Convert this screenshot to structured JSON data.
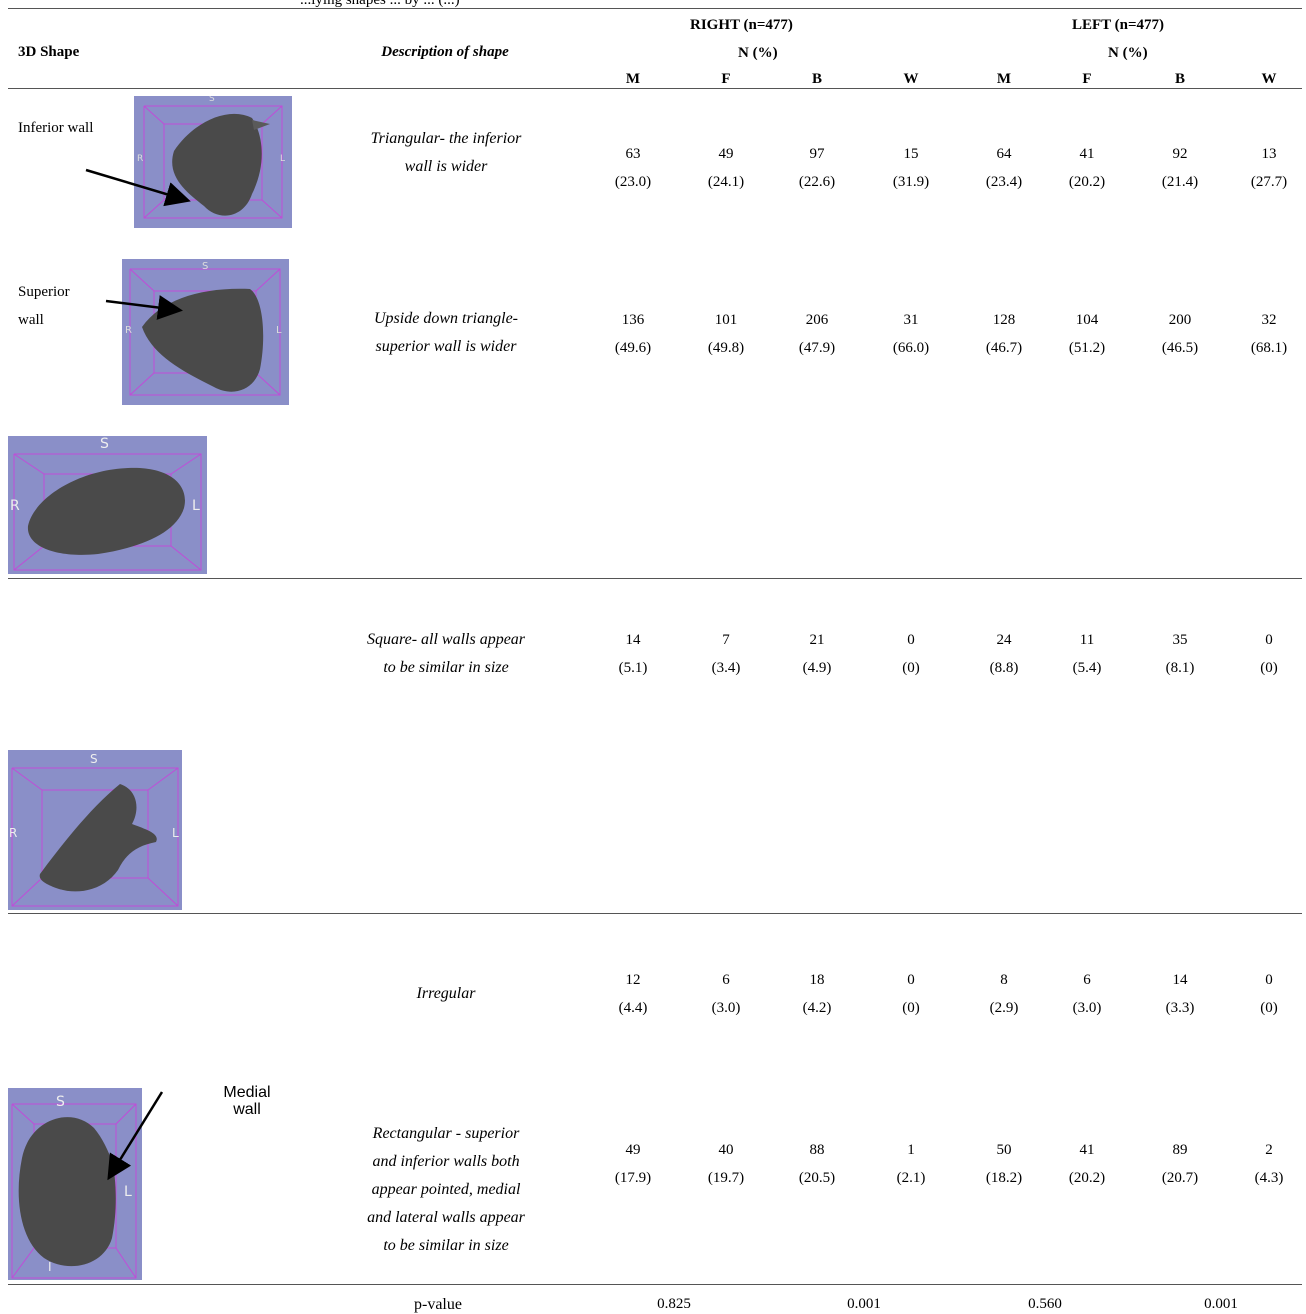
{
  "caption": "...lying shapes ... by ... (...)",
  "headers": {
    "shape": "3D Shape",
    "description": "Description of shape",
    "right": "RIGHT (n=477)",
    "left": "LEFT (n=477)",
    "n_pct": "N (%)",
    "cols": [
      "M",
      "F",
      "B",
      "W",
      "M",
      "F",
      "B",
      "W"
    ]
  },
  "rows": [
    {
      "label": "Inferior wall",
      "desc": [
        "Triangular- the inferior",
        "wall is wider"
      ],
      "n": [
        "63",
        "49",
        "97",
        "15",
        "64",
        "41",
        "92",
        "13"
      ],
      "pct": [
        "(23.0)",
        "(24.1)",
        "(22.6)",
        "(31.9)",
        "(23.4)",
        "(20.2)",
        "(21.4)",
        "(27.7)"
      ]
    },
    {
      "label": "Superior wall",
      "desc": [
        "Upside down triangle-",
        "superior wall is wider"
      ],
      "n": [
        "136",
        "101",
        "206",
        "31",
        "128",
        "104",
        "200",
        "32"
      ],
      "pct": [
        "(49.6)",
        "(49.8)",
        "(47.9)",
        "(66.0)",
        "(46.7)",
        "(51.2)",
        "(46.5)",
        "(68.1)"
      ]
    },
    {
      "label": "",
      "desc": [
        "Square- all walls appear",
        "to be similar in size"
      ],
      "n": [
        "14",
        "7",
        "21",
        "0",
        "24",
        "11",
        "35",
        "0"
      ],
      "pct": [
        "(5.1)",
        "(3.4)",
        "(4.9)",
        "(0)",
        "(8.8)",
        "(5.4)",
        "(8.1)",
        "(0)"
      ]
    },
    {
      "label": "",
      "desc": [
        "Irregular"
      ],
      "n": [
        "12",
        "6",
        "18",
        "0",
        "8",
        "6",
        "14",
        "0"
      ],
      "pct": [
        "(4.4)",
        "(3.0)",
        "(4.2)",
        "(0)",
        "(2.9)",
        "(3.0)",
        "(3.3)",
        "(0)"
      ]
    },
    {
      "label": "Medial wall",
      "desc": [
        "Rectangular - superior",
        "and inferior walls both",
        "appear pointed, medial",
        "and lateral walls appear",
        "to be similar in size"
      ],
      "n": [
        "49",
        "40",
        "88",
        "1",
        "50",
        "41",
        "89",
        "2"
      ],
      "pct": [
        "(17.9)",
        "(19.7)",
        "(20.5)",
        "(2.1)",
        "(18.2)",
        "(20.2)",
        "(20.7)",
        "(4.3)"
      ]
    }
  ],
  "pvalue": {
    "label": "p-value",
    "values": [
      "0.825",
      "0.001",
      "0.560",
      "0.001"
    ]
  },
  "thumb_letters": {
    "s": "S",
    "r": "R",
    "l": "L",
    "i": "I"
  },
  "colors": {
    "thumb_bg": "#8a8fc8",
    "thumb_lines": "#c04cd8",
    "shape": "#4a4a4a"
  }
}
